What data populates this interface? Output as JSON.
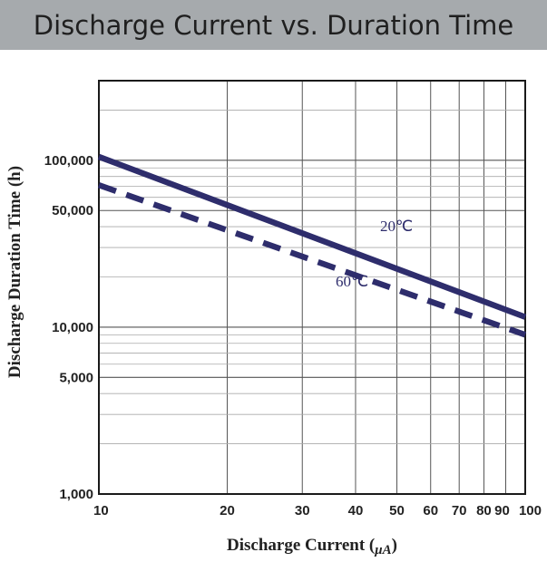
{
  "header": {
    "title": "Discharge Current vs. Duration Time"
  },
  "colors": {
    "header_bg": "#a6aaad",
    "series": "#2e2d6c",
    "grid": "#888888"
  },
  "chart_data": {
    "type": "line",
    "title": "Discharge Current vs. Duration Time",
    "xlabel_main": "Discharge Current (",
    "xlabel_unit": "μA",
    "xlabel_close": ")",
    "ylabel": "Discharge Duration Time (h)",
    "x_scale": "log",
    "y_scale": "log",
    "xlim": [
      10,
      100
    ],
    "ylim": [
      1000,
      300000
    ],
    "grid": true,
    "x_ticks": [
      {
        "value": 10,
        "label": "10"
      },
      {
        "value": 20,
        "label": "20"
      },
      {
        "value": 30,
        "label": "30"
      },
      {
        "value": 40,
        "label": "40"
      },
      {
        "value": 50,
        "label": "50"
      },
      {
        "value": 60,
        "label": "60"
      },
      {
        "value": 70,
        "label": "70"
      },
      {
        "value": 80,
        "label": "80"
      },
      {
        "value": 90,
        "label": "90"
      },
      {
        "value": 100,
        "label": "100"
      }
    ],
    "y_ticks": [
      {
        "value": 1000,
        "label": "1,000"
      },
      {
        "value": 5000,
        "label": "5,000"
      },
      {
        "value": 10000,
        "label": "10,000"
      },
      {
        "value": 50000,
        "label": "50,000"
      },
      {
        "value": 100000,
        "label": "100,000"
      }
    ],
    "series": [
      {
        "name": "20℃",
        "style": "solid",
        "x": [
          10,
          100
        ],
        "y": [
          105000,
          11500
        ]
      },
      {
        "name": "60℃",
        "style": "dashed",
        "x": [
          10,
          100
        ],
        "y": [
          71000,
          9000
        ]
      }
    ]
  }
}
